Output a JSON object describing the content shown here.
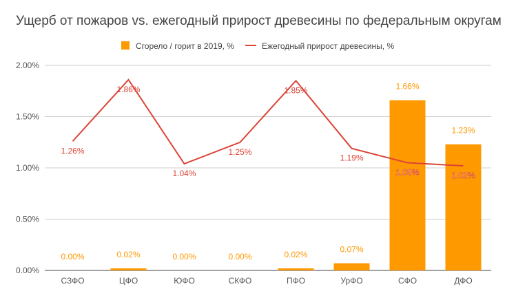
{
  "chart_data": {
    "type": "bar",
    "title": "Ущерб от пожаров vs. ежегодный прирост древесины по федеральным округам",
    "categories": [
      "СЗФО",
      "ЦФО",
      "ЮФО",
      "СКФО",
      "ПФО",
      "УрФО",
      "СФО",
      "ДФО"
    ],
    "series": [
      {
        "name": "Сгорело / горит в 2019, %",
        "type": "bar",
        "color": "#ff9900",
        "values": [
          0.0,
          0.02,
          0.0,
          0.0,
          0.02,
          0.07,
          1.66,
          1.23
        ],
        "labels": [
          "0.00%",
          "0.02%",
          "0.00%",
          "0.00%",
          "0.02%",
          "0.07%",
          "1.66%",
          "1.23%"
        ]
      },
      {
        "name": "Ежегодный прирост древесины, %",
        "type": "line",
        "color": "#db4437",
        "values": [
          1.26,
          1.86,
          1.04,
          1.25,
          1.85,
          1.19,
          1.05,
          1.02
        ],
        "labels": [
          "1.26%",
          "1.86%",
          "1.04%",
          "1.25%",
          "1.85%",
          "1.19%",
          "1.05%",
          "1.02%"
        ]
      }
    ],
    "ylim": [
      0,
      2
    ],
    "yticks": [
      0,
      0.5,
      1.0,
      1.5,
      2.0
    ],
    "ytick_labels": [
      "0.00%",
      "0.50%",
      "1.00%",
      "1.50%",
      "2.00%"
    ],
    "legend_position": "top",
    "grid": true
  }
}
